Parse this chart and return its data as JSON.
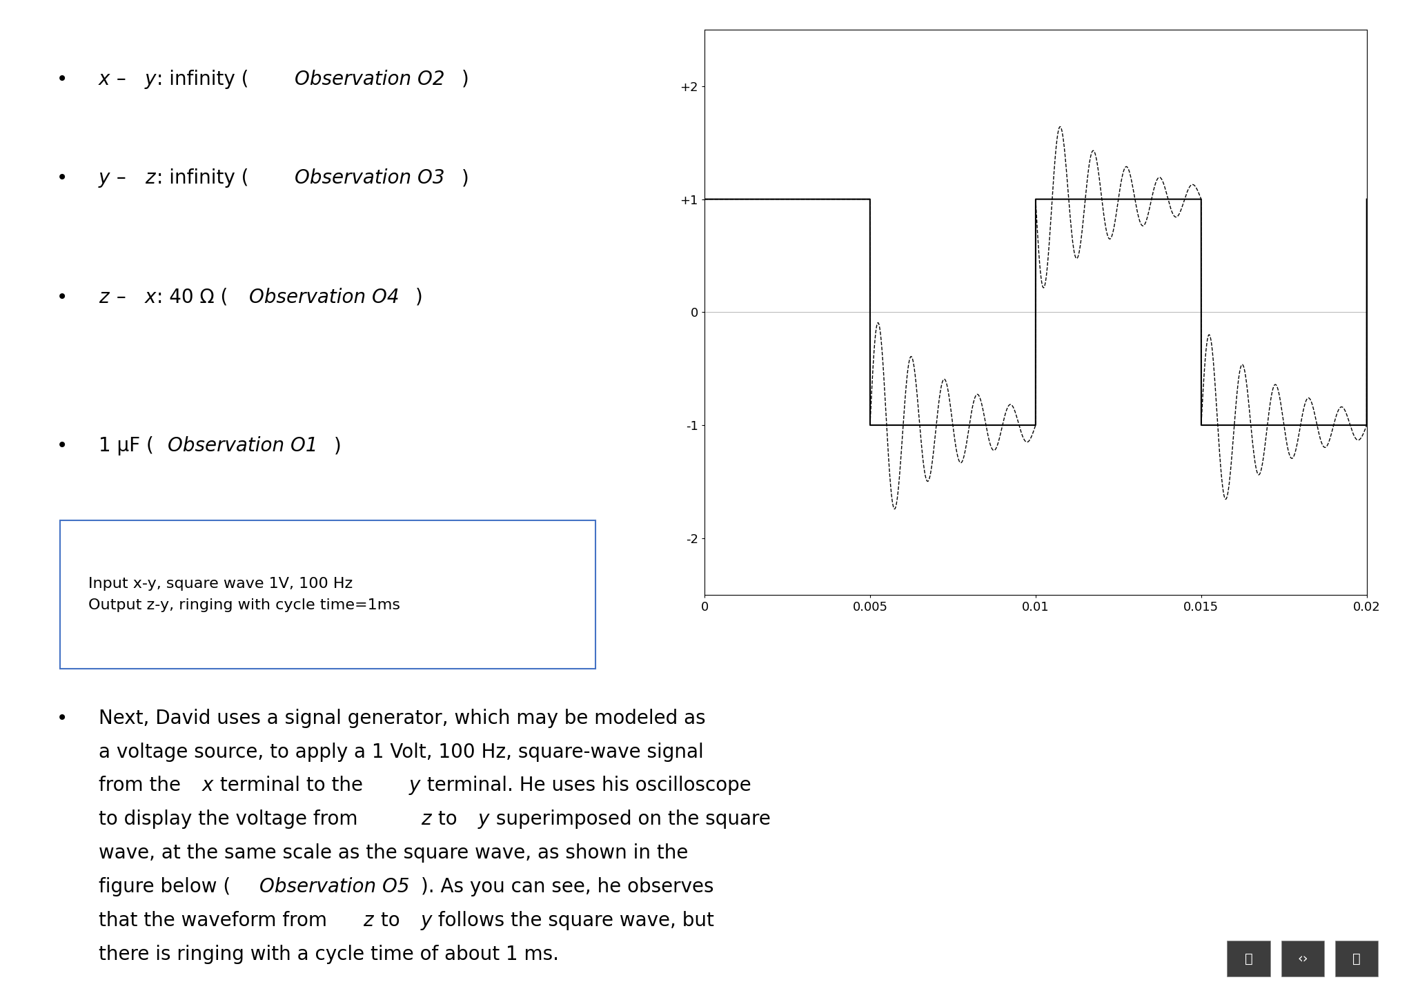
{
  "background_color": "#ffffff",
  "bullet_char": "•",
  "bullets_top": [
    "x – y: infinity (Observation O2)",
    "y – z: infinity (Observation O3)",
    "z – x: 40 Ω (Observation O4)"
  ],
  "bullets_top_italic_parts": [
    [
      [
        0,
        1
      ],
      [
        4,
        5
      ],
      [
        16,
        30
      ]
    ],
    [
      [
        0,
        1
      ],
      [
        4,
        5
      ],
      [
        16,
        30
      ]
    ],
    [
      [
        0,
        1
      ],
      [
        4,
        5
      ],
      [
        16,
        30
      ]
    ]
  ],
  "bullet_mid": "1 μF (Observation O1)",
  "textbox_line1": "Input x-y, square wave 1V, 100 Hz",
  "textbox_line2": "Output z-y, ringing with cycle time=1ms",
  "textbox_border_color": "#4472C4",
  "para_lines": [
    "Next, David uses a signal generator, which may be modeled as",
    "a voltage source, to apply a 1 Volt, 100 Hz, square-wave signal",
    "from the x terminal to the y terminal. He uses his oscilloscope",
    "to display the voltage from z to y superimposed on the square",
    "wave, at the same scale as the square wave, as shown in the",
    "figure below (Observation O5). As you can see, he observes",
    "that the waveform from z to y follows the square wave, but",
    "there is ringing with a cycle time of about 1 ms."
  ],
  "para_italic_words": [
    "x",
    "y",
    "z",
    "Observation O5"
  ],
  "plot_xlim": [
    0.0,
    0.02
  ],
  "plot_ylim": [
    -2.5,
    2.5
  ],
  "plot_yticks": [
    -2,
    -1,
    0,
    1,
    2
  ],
  "plot_ytick_labels": [
    "-2",
    "-1",
    "0",
    "+1",
    "+2"
  ],
  "plot_xticks": [
    0.0,
    0.005,
    0.01,
    0.015,
    0.02
  ],
  "plot_xtick_labels": [
    "0",
    "0.005",
    "0.01",
    "0.015",
    "0.02"
  ],
  "sq_color": "#000000",
  "ring_color": "#000000",
  "sq_lw": 1.5,
  "ring_lw": 1.0,
  "font_size_bullet": 20,
  "font_size_textbox": 16,
  "font_size_para": 20,
  "font_size_ticks": 13,
  "icon_bg": "#3d3d3d"
}
